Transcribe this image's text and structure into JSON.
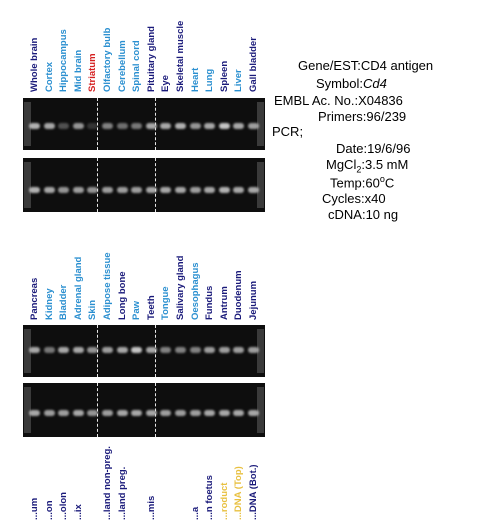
{
  "colors": {
    "dark": "#1a1a7a",
    "light": "#2a8fd0",
    "red": "#d52020",
    "yellow": "#e8c040"
  },
  "panel1": {
    "lanes": [
      {
        "label": "Whole brain",
        "color": "dark"
      },
      {
        "label": "Cortex",
        "color": "light"
      },
      {
        "label": "Hippocampus",
        "color": "light"
      },
      {
        "label": "Mid brain",
        "color": "light"
      },
      {
        "label": "Striatum",
        "color": "red"
      },
      {
        "label": "Olfactory bulb",
        "color": "light"
      },
      {
        "label": "Cerebellum",
        "color": "light"
      },
      {
        "label": "Spinal cord",
        "color": "light"
      },
      {
        "label": "Pituitary gland",
        "color": "dark"
      },
      {
        "label": "Eye",
        "color": "dark"
      },
      {
        "label": "Skeletal muscle",
        "color": "dark"
      },
      {
        "label": "Heart",
        "color": "light"
      },
      {
        "label": "Lung",
        "color": "light"
      },
      {
        "label": "Spleen",
        "color": "dark"
      },
      {
        "label": "Liver",
        "color": "light"
      },
      {
        "label": "Gall bladder",
        "color": "dark"
      }
    ]
  },
  "panel2": {
    "lanes": [
      {
        "label": "Pancreas",
        "color": "dark"
      },
      {
        "label": "Kidney",
        "color": "light"
      },
      {
        "label": "Bladder",
        "color": "light"
      },
      {
        "label": "Adrenal gland",
        "color": "light"
      },
      {
        "label": "Skin",
        "color": "light"
      },
      {
        "label": "Adipose tissue",
        "color": "light"
      },
      {
        "label": "Long bone",
        "color": "dark"
      },
      {
        "label": "Paw",
        "color": "light"
      },
      {
        "label": "Teeth",
        "color": "dark"
      },
      {
        "label": "Tongue",
        "color": "light"
      },
      {
        "label": "Salivary gland",
        "color": "dark"
      },
      {
        "label": "Oesophagus",
        "color": "light"
      },
      {
        "label": "Fundus",
        "color": "dark"
      },
      {
        "label": "Antrum",
        "color": "dark"
      },
      {
        "label": "Duodenum",
        "color": "dark"
      },
      {
        "label": "Jejunum",
        "color": "dark"
      }
    ]
  },
  "panel3": {
    "lanes": [
      {
        "label": "...um",
        "color": "dark"
      },
      {
        "label": "...on",
        "color": "dark"
      },
      {
        "label": "...olon",
        "color": "dark"
      },
      {
        "label": "...ix",
        "color": "dark"
      },
      {
        "label": "",
        "color": "dark"
      },
      {
        "label": "...land non-preg.",
        "color": "dark"
      },
      {
        "label": "...land preg.",
        "color": "dark"
      },
      {
        "label": "",
        "color": "dark"
      },
      {
        "label": "...mis",
        "color": "dark"
      },
      {
        "label": "",
        "color": "dark"
      },
      {
        "label": "",
        "color": "dark"
      },
      {
        "label": "...a",
        "color": "dark"
      },
      {
        "label": "...n foetus",
        "color": "dark"
      },
      {
        "label": "...roduct",
        "color": "yellow"
      },
      {
        "label": "...DNA (Top)",
        "color": "yellow"
      },
      {
        "label": "...DNA (Bot.)",
        "color": "dark"
      }
    ]
  },
  "info": {
    "gene_key": "Gene/EST:",
    "gene_val": "CD4 antigen",
    "symbol_key": "Symbol:",
    "symbol_val": "Cd4",
    "embl_key": "EMBL Ac. No.:",
    "embl_val": "X04836",
    "primers_key": "Primers:",
    "primers_val": "96/239",
    "pcr_label": "PCR;",
    "date_key": "Date:",
    "date_val": "19/6/96",
    "mgcl_key": "MgCl",
    "mgcl_sub": "2",
    "mgcl_val": ":3.5 mM",
    "temp_key": "Temp:",
    "temp_val": "60",
    "temp_unit": "o",
    "temp_c": "C",
    "cycles_key": "Cycles:",
    "cycles_val": "x40",
    "cdna_key": "cDNA:",
    "cdna_val": "10 ng"
  }
}
